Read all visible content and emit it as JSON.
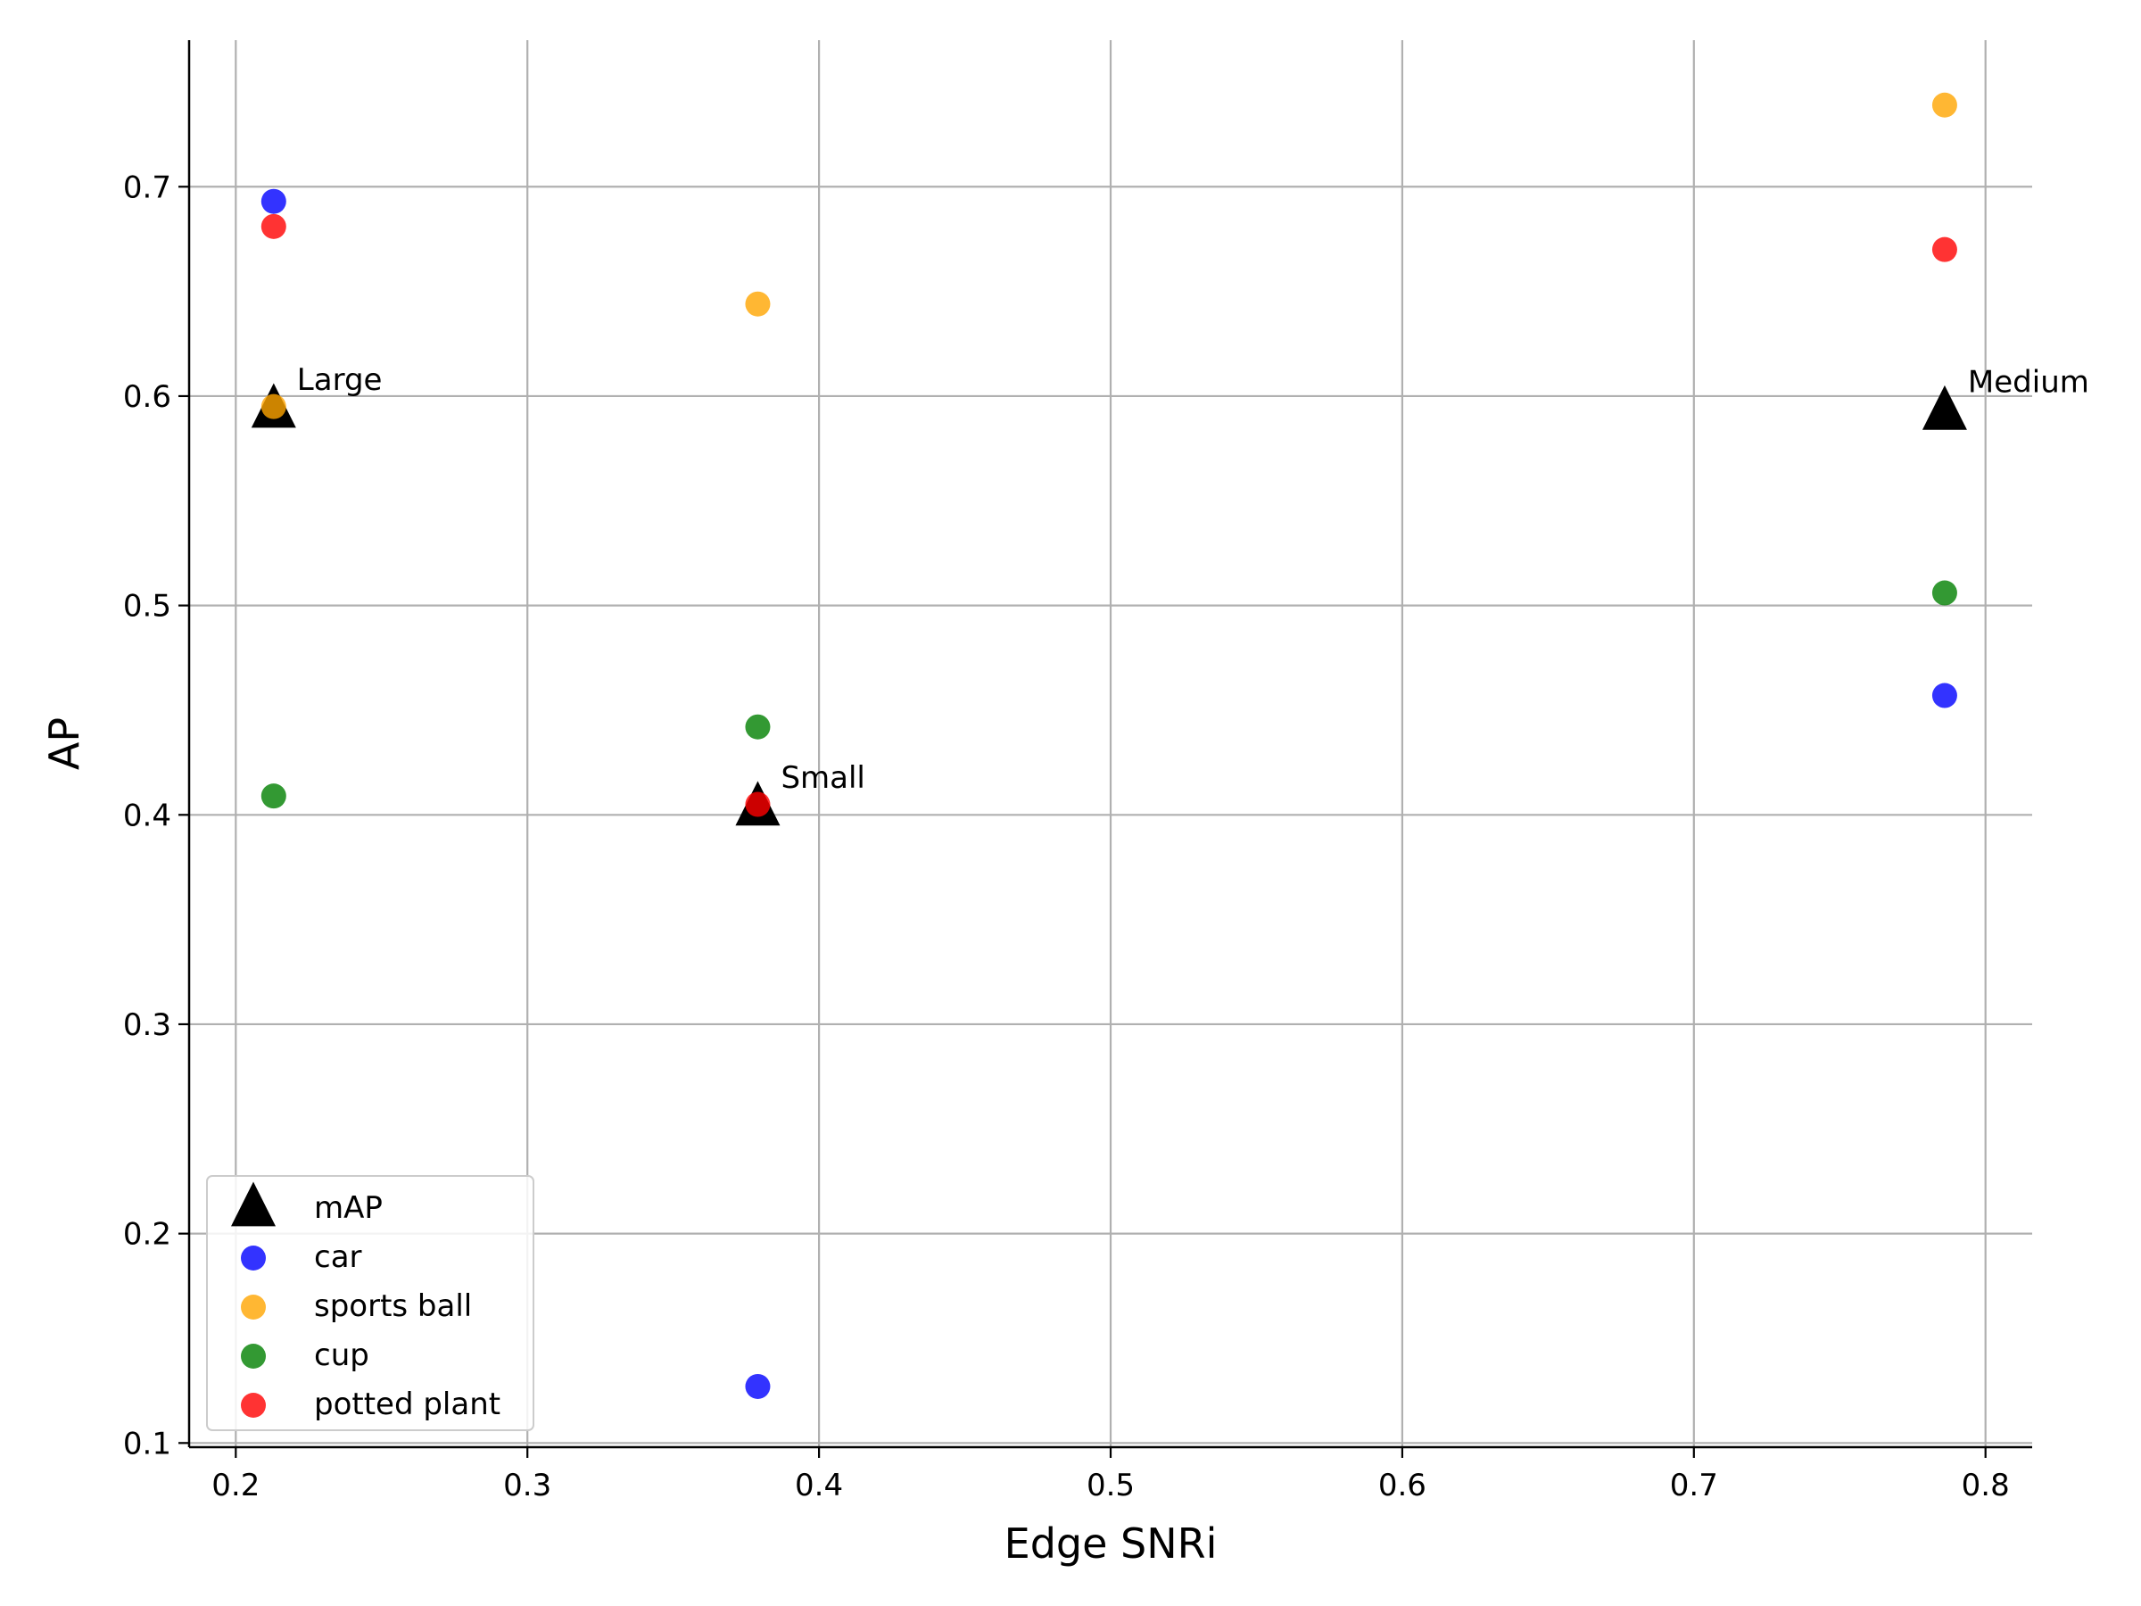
{
  "chart_data": {
    "type": "scatter",
    "xlabel": "Edge SNRi",
    "ylabel": "AP",
    "xlim": [
      0.184,
      0.816
    ],
    "ylim": [
      0.098,
      0.77
    ],
    "xticks": [
      0.2,
      0.3,
      0.4,
      0.5,
      0.6,
      0.7,
      0.8
    ],
    "xtick_labels": [
      "0.2",
      "0.3",
      "0.4",
      "0.5",
      "0.6",
      "0.7",
      "0.8"
    ],
    "yticks": [
      0.1,
      0.2,
      0.3,
      0.4,
      0.5,
      0.6,
      0.7
    ],
    "ytick_labels": [
      "0.1",
      "0.2",
      "0.3",
      "0.4",
      "0.5",
      "0.6",
      "0.7"
    ],
    "grid": true,
    "legend_position": "lower-left",
    "series": [
      {
        "name": "mAP",
        "marker": "triangle",
        "color": "#000000",
        "x": [
          0.213,
          0.379,
          0.786
        ],
        "y": [
          0.594,
          0.404,
          0.593
        ],
        "point_labels": [
          "Large",
          "Small",
          "Medium"
        ]
      },
      {
        "name": "car",
        "marker": "circle",
        "color": "#0000ff",
        "x": [
          0.213,
          0.379,
          0.786
        ],
        "y": [
          0.693,
          0.127,
          0.457
        ]
      },
      {
        "name": "sports ball",
        "marker": "circle",
        "color": "#ffa500",
        "x": [
          0.213,
          0.379,
          0.786
        ],
        "y": [
          0.595,
          0.644,
          0.739
        ]
      },
      {
        "name": "cup",
        "marker": "circle",
        "color": "#008000",
        "x": [
          0.213,
          0.379,
          0.786
        ],
        "y": [
          0.409,
          0.442,
          0.506
        ]
      },
      {
        "name": "potted plant",
        "marker": "circle",
        "color": "#ff0000",
        "x": [
          0.213,
          0.379,
          0.786
        ],
        "y": [
          0.681,
          0.405,
          0.67
        ]
      }
    ]
  }
}
